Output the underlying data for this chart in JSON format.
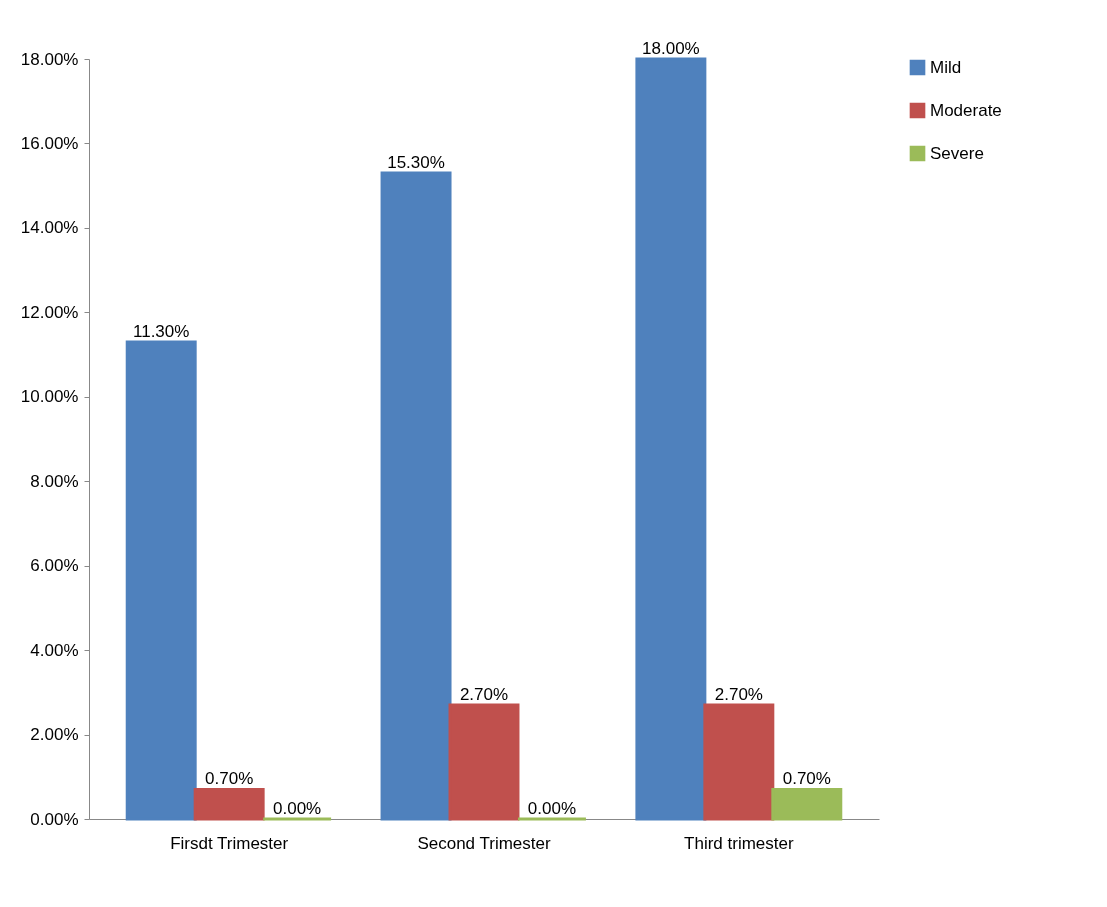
{
  "chart_data": {
    "type": "bar",
    "categories": [
      "Firsdt Trimester",
      "Second Trimester",
      "Third trimester"
    ],
    "series": [
      {
        "name": "Mild",
        "color": "#4f81bd",
        "values": [
          11.3,
          15.3,
          18.0
        ],
        "value_labels": [
          "11.30%",
          "15.30%",
          "18.00%"
        ]
      },
      {
        "name": "Moderate",
        "color": "#c0504d",
        "values": [
          0.7,
          2.7,
          2.7
        ],
        "value_labels": [
          "0.70%",
          "2.70%",
          "2.70%"
        ]
      },
      {
        "name": "Severe",
        "color": "#9bbb59",
        "values": [
          0,
          0,
          0.7
        ],
        "value_labels": [
          "0.00%",
          "0.00%",
          "0.70%"
        ]
      }
    ],
    "ylim": [
      0,
      18
    ],
    "yticks": [
      {
        "value": 0,
        "label": "0.00%"
      },
      {
        "value": 2,
        "label": "2.00%"
      },
      {
        "value": 4,
        "label": "4.00%"
      },
      {
        "value": 6,
        "label": "6.00%"
      },
      {
        "value": 8,
        "label": "8.00%"
      },
      {
        "value": 10,
        "label": "10.00%"
      },
      {
        "value": 12,
        "label": "12.00%"
      },
      {
        "value": 14,
        "label": "14.00%"
      },
      {
        "value": 16,
        "label": "16.00%"
      },
      {
        "value": 18,
        "label": "18.00%"
      }
    ],
    "grid": false,
    "legend": "right"
  }
}
